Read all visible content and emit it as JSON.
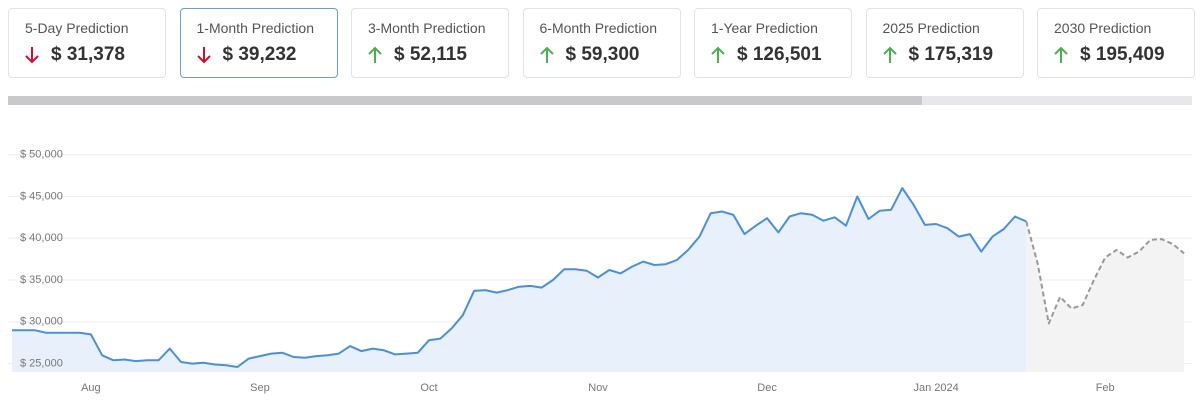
{
  "cards": [
    {
      "label": "5-Day Prediction",
      "value": "$ 31,378",
      "direction": "down"
    },
    {
      "label": "1-Month Prediction",
      "value": "$ 39,232",
      "direction": "down",
      "selected": true
    },
    {
      "label": "3-Month Prediction",
      "value": "$ 52,115",
      "direction": "up"
    },
    {
      "label": "6-Month Prediction",
      "value": "$ 59,300",
      "direction": "up"
    },
    {
      "label": "1-Year Prediction",
      "value": "$ 126,501",
      "direction": "up"
    },
    {
      "label": "2025 Prediction",
      "value": "$ 175,319",
      "direction": "up"
    },
    {
      "label": "2030 Prediction",
      "value": "$ 195,409",
      "direction": "up"
    }
  ],
  "chart_data": {
    "type": "line",
    "categories": [
      null,
      null,
      null,
      null,
      null,
      null,
      null,
      "Aug",
      null,
      null,
      null,
      null,
      null,
      null,
      null,
      null,
      null,
      null,
      null,
      null,
      null,
      null,
      "Sep",
      null,
      null,
      null,
      null,
      null,
      null,
      null,
      null,
      null,
      null,
      null,
      null,
      null,
      null,
      "Oct",
      null,
      null,
      null,
      null,
      null,
      null,
      null,
      null,
      null,
      null,
      null,
      null,
      null,
      null,
      "Nov",
      null,
      null,
      null,
      null,
      null,
      null,
      null,
      null,
      null,
      null,
      null,
      null,
      null,
      null,
      "Dec",
      null,
      null,
      null,
      null,
      null,
      null,
      null,
      null,
      null,
      null,
      null,
      null,
      null,
      null,
      "Jan 2024",
      null,
      null,
      null,
      null,
      null,
      null,
      null,
      null,
      null,
      null,
      null,
      null,
      null,
      null,
      "Feb",
      null,
      null,
      null,
      null,
      null,
      null,
      null
    ],
    "series": [
      {
        "color": "#4a90d9",
        "area_color": "#e8f0fb",
        "line_style": "solid",
        "values": [
          29000,
          29000,
          29000,
          28700,
          28700,
          28700,
          28700,
          28500,
          26000,
          25400,
          25500,
          25300,
          25400,
          25400,
          26800,
          25200,
          25000,
          25100,
          24900,
          24800,
          24600,
          25600,
          25900,
          26200,
          26300,
          25800,
          25700,
          25900,
          26000,
          26200,
          27100,
          26500,
          26800,
          26600,
          26100,
          26200,
          26300,
          27800,
          28000,
          29200,
          30800,
          33700,
          33800,
          33500,
          33800,
          34200,
          34300,
          34100,
          35000,
          36300,
          36300,
          36100,
          35300,
          36200,
          35800,
          36600,
          37200,
          36800,
          36900,
          37400,
          38600,
          40200,
          43000,
          43200,
          42800,
          40500,
          41500,
          42400,
          40700,
          42600,
          43000,
          42800,
          42100,
          42500,
          41500,
          45000,
          42300,
          43300,
          43400,
          46000,
          44000,
          41600,
          41700,
          41200,
          40200,
          40500,
          38400,
          40200,
          41100,
          42600,
          42000,
          null,
          null,
          null,
          null,
          null,
          null,
          null,
          null,
          null,
          null,
          null,
          null,
          null,
          null
        ]
      },
      {
        "color": "#999999",
        "area_color": "#f3f3f3",
        "line_style": "dashed",
        "values": [
          null,
          null,
          null,
          null,
          null,
          null,
          null,
          null,
          null,
          null,
          null,
          null,
          null,
          null,
          null,
          null,
          null,
          null,
          null,
          null,
          null,
          null,
          null,
          null,
          null,
          null,
          null,
          null,
          null,
          null,
          null,
          null,
          null,
          null,
          null,
          null,
          null,
          null,
          null,
          null,
          null,
          null,
          null,
          null,
          null,
          null,
          null,
          null,
          null,
          null,
          null,
          null,
          null,
          null,
          null,
          null,
          null,
          null,
          null,
          null,
          null,
          null,
          null,
          null,
          null,
          null,
          null,
          null,
          null,
          null,
          null,
          null,
          null,
          null,
          null,
          null,
          null,
          null,
          null,
          null,
          null,
          null,
          null,
          null,
          null,
          null,
          null,
          null,
          null,
          null,
          42000,
          37000,
          29800,
          33000,
          31600,
          32000,
          35000,
          37700,
          38600,
          37700,
          38400,
          39800,
          39900,
          39300,
          38200
        ]
      }
    ],
    "ylim": [
      24000,
      51500
    ],
    "yticks": [
      {
        "value": 25000,
        "label": "$ 25,000"
      },
      {
        "value": 30000,
        "label": "$ 30,000"
      },
      {
        "value": 35000,
        "label": "$ 35,000"
      },
      {
        "value": 40000,
        "label": "$ 40,000"
      },
      {
        "value": 45000,
        "label": "$ 45,000"
      },
      {
        "value": 50000,
        "label": "$ 50,000"
      }
    ],
    "grid": true
  }
}
